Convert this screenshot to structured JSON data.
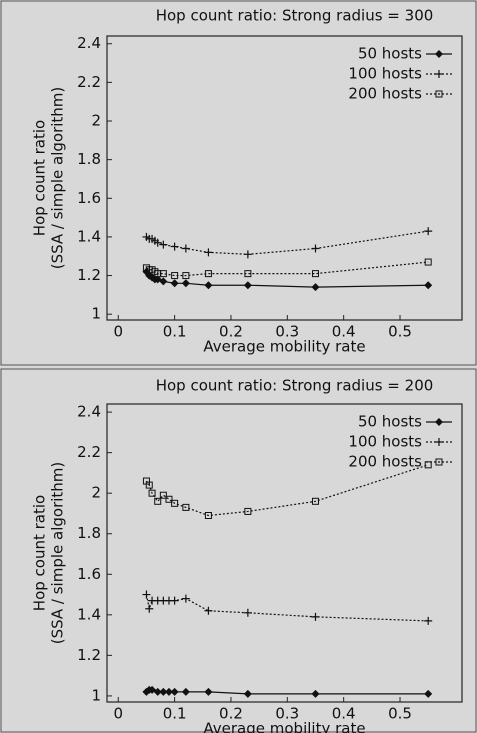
{
  "chart_data": [
    {
      "type": "line",
      "title": "Hop count ratio: Strong radius = 300",
      "xlabel": "Average mobility rate",
      "ylabel": [
        "Hop count ratio",
        "(SSA / simple algorithm)"
      ],
      "x": [
        0.05,
        0.055,
        0.06,
        0.065,
        0.07,
        0.08,
        0.1,
        0.12,
        0.16,
        0.23,
        0.35,
        0.55
      ],
      "series": [
        {
          "name": "50 hosts",
          "color": "#111111",
          "marker": "diamond",
          "dash": "solid",
          "values": [
            1.22,
            1.2,
            1.19,
            1.18,
            1.18,
            1.17,
            1.16,
            1.16,
            1.15,
            1.15,
            1.14,
            1.15
          ]
        },
        {
          "name": "100 hosts",
          "color": "#111111",
          "marker": "plus",
          "dash": "dotted",
          "values": [
            1.4,
            1.39,
            1.39,
            1.38,
            1.37,
            1.36,
            1.35,
            1.34,
            1.32,
            1.31,
            1.34,
            1.43
          ]
        },
        {
          "name": "200 hosts",
          "color": "#111111",
          "marker": "square",
          "dash": "dotted",
          "values": [
            1.24,
            1.23,
            1.23,
            1.22,
            1.21,
            1.21,
            1.2,
            1.2,
            1.21,
            1.21,
            1.21,
            1.27
          ]
        }
      ],
      "xlim": [
        -0.02,
        0.61
      ],
      "xticks": [
        0,
        0.1,
        0.2,
        0.3,
        0.4,
        0.5
      ],
      "ylim": [
        0.97,
        2.44
      ],
      "yticks": [
        1,
        1.2,
        1.4,
        1.6,
        1.8,
        2,
        2.2,
        2.4
      ],
      "legend": "upper right"
    },
    {
      "type": "line",
      "title": "Hop count ratio: Strong radius = 200",
      "xlabel": "Average mobility rate",
      "ylabel": [
        "Hop count ratio",
        "(SSA / simple algorithm)"
      ],
      "x": [
        0.05,
        0.055,
        0.06,
        0.07,
        0.08,
        0.09,
        0.1,
        0.12,
        0.16,
        0.23,
        0.35,
        0.55
      ],
      "series": [
        {
          "name": "50 hosts",
          "color": "#111111",
          "marker": "diamond",
          "dash": "solid",
          "values": [
            1.02,
            1.03,
            1.03,
            1.02,
            1.02,
            1.02,
            1.02,
            1.02,
            1.02,
            1.01,
            1.01,
            1.01
          ]
        },
        {
          "name": "100 hosts",
          "color": "#111111",
          "marker": "plus",
          "dash": "dotted",
          "values": [
            1.5,
            1.43,
            1.47,
            1.47,
            1.47,
            1.47,
            1.47,
            1.48,
            1.42,
            1.41,
            1.39,
            1.37
          ]
        },
        {
          "name": "200 hosts",
          "color": "#111111",
          "marker": "square",
          "dash": "dotted",
          "values": [
            2.06,
            2.04,
            2.0,
            1.96,
            1.99,
            1.97,
            1.95,
            1.93,
            1.89,
            1.91,
            1.96,
            2.14
          ]
        }
      ],
      "xlim": [
        -0.02,
        0.61
      ],
      "xticks": [
        0,
        0.1,
        0.2,
        0.3,
        0.4,
        0.5
      ],
      "ylim": [
        0.97,
        2.44
      ],
      "yticks": [
        1,
        1.2,
        1.4,
        1.6,
        1.8,
        2,
        2.2,
        2.4
      ],
      "legend": "upper right"
    }
  ]
}
